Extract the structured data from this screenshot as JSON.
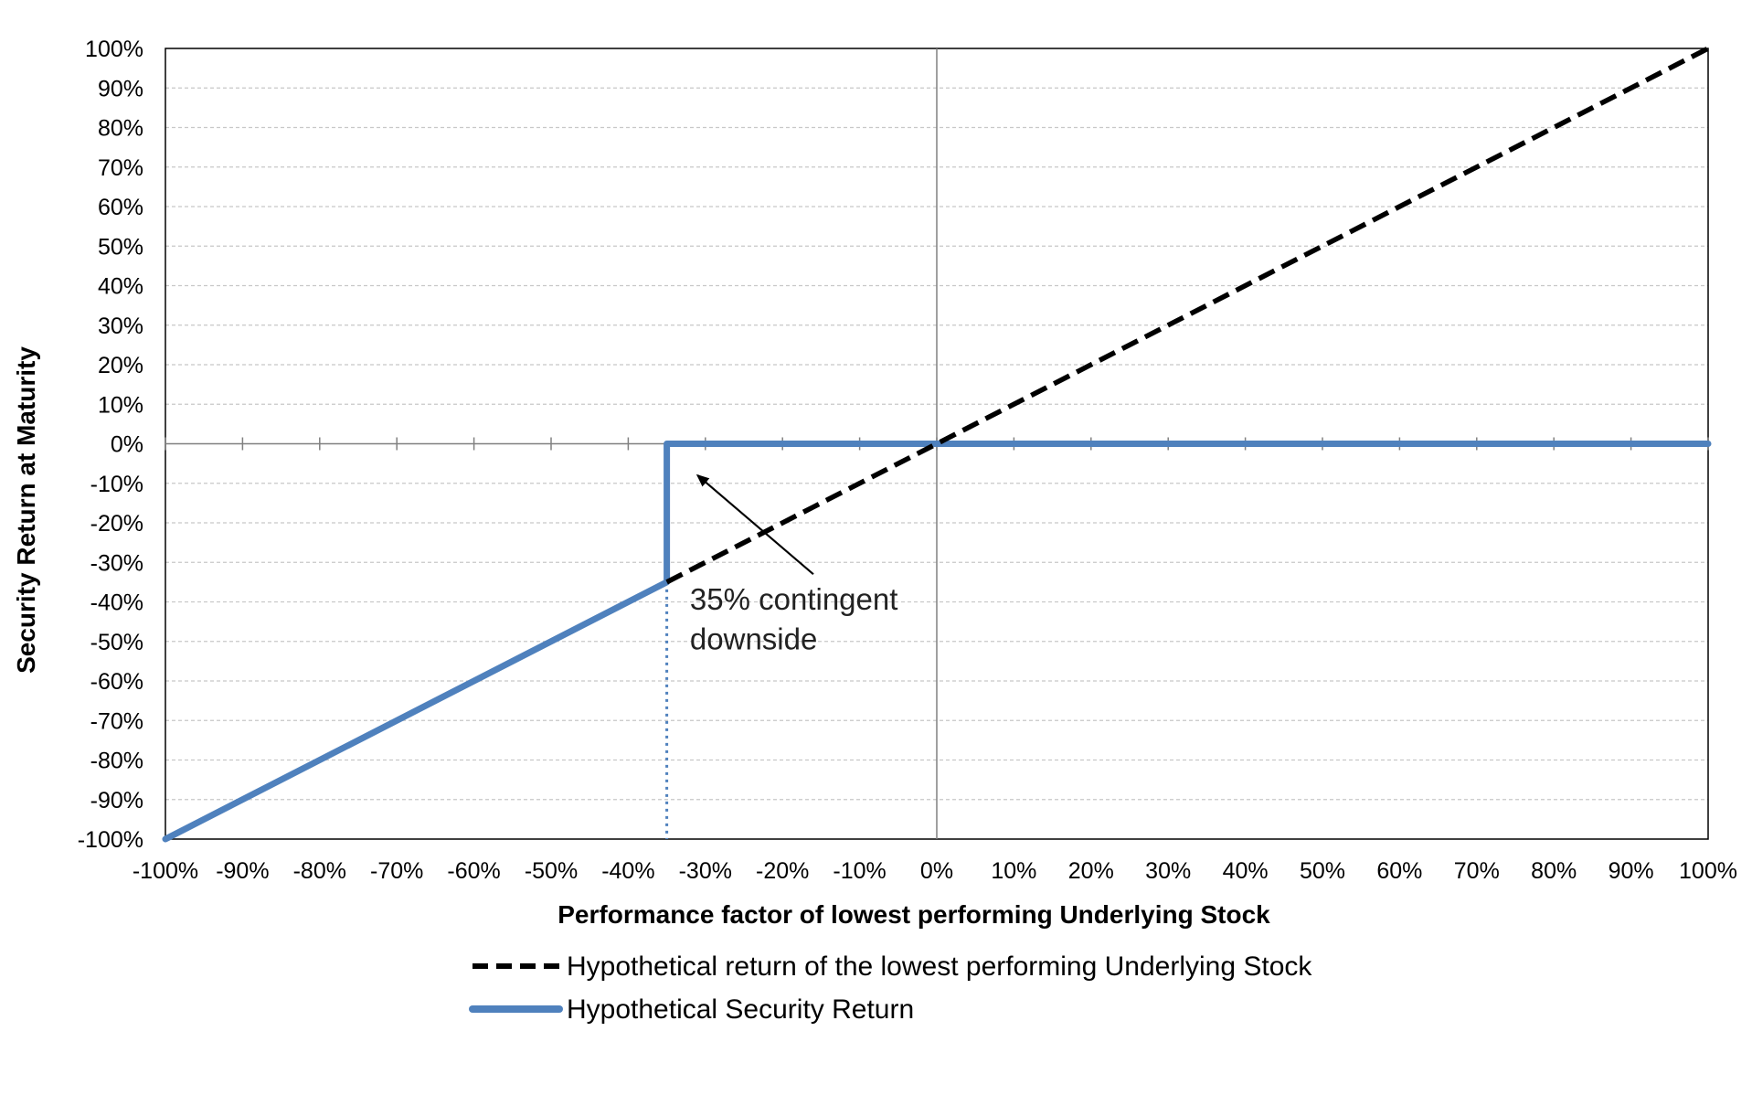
{
  "chart_data": {
    "type": "line",
    "title": "",
    "xlabel": "Performance factor of lowest performing Underlying Stock",
    "ylabel": "Security Return at Maturity",
    "xlim": [
      -100,
      100
    ],
    "ylim": [
      -100,
      100
    ],
    "x_ticks": [
      -100,
      -90,
      -80,
      -70,
      -60,
      -50,
      -40,
      -30,
      -20,
      -10,
      0,
      10,
      20,
      30,
      40,
      50,
      60,
      70,
      80,
      90,
      100
    ],
    "x_tick_labels": [
      "-100%",
      "-90%",
      "-80%",
      "-70%",
      "-60%",
      "-50%",
      "-40%",
      "-30%",
      "-20%",
      "-10%",
      "0%",
      "10%",
      "20%",
      "30%",
      "40%",
      "50%",
      "60%",
      "70%",
      "80%",
      "90%",
      "100%"
    ],
    "y_ticks": [
      100,
      90,
      80,
      70,
      60,
      50,
      40,
      30,
      20,
      10,
      0,
      -10,
      -20,
      -30,
      -40,
      -50,
      -60,
      -70,
      -80,
      -90,
      -100
    ],
    "y_tick_labels": [
      "100%",
      "90%",
      "80%",
      "70%",
      "60%",
      "50%",
      "40%",
      "30%",
      "20%",
      "10%",
      "0%",
      "-10%",
      "-20%",
      "-30%",
      "-40%",
      "-50%",
      "-60%",
      "-70%",
      "-80%",
      "-90%",
      "-100%"
    ],
    "grid": true,
    "legend_position": "bottom",
    "series": [
      {
        "name": "Hypothetical return of the lowest performing Underlying Stock",
        "style": "dashed",
        "color": "#000000",
        "points": [
          [
            -35,
            -35
          ],
          [
            100,
            100
          ]
        ]
      },
      {
        "name": "Hypothetical Security Return",
        "style": "solid",
        "color": "#4f81bd",
        "points": [
          [
            -100,
            -100
          ],
          [
            -35,
            -35
          ],
          [
            -35,
            0
          ],
          [
            100,
            0
          ]
        ]
      }
    ],
    "reference_line": {
      "x": -35,
      "style": "dotted",
      "color": "#4f81bd"
    },
    "annotation": {
      "lines": [
        "35% contingent",
        "downside"
      ],
      "arrow_from": [
        -16,
        -33
      ],
      "arrow_to": [
        -31,
        -8
      ]
    }
  }
}
